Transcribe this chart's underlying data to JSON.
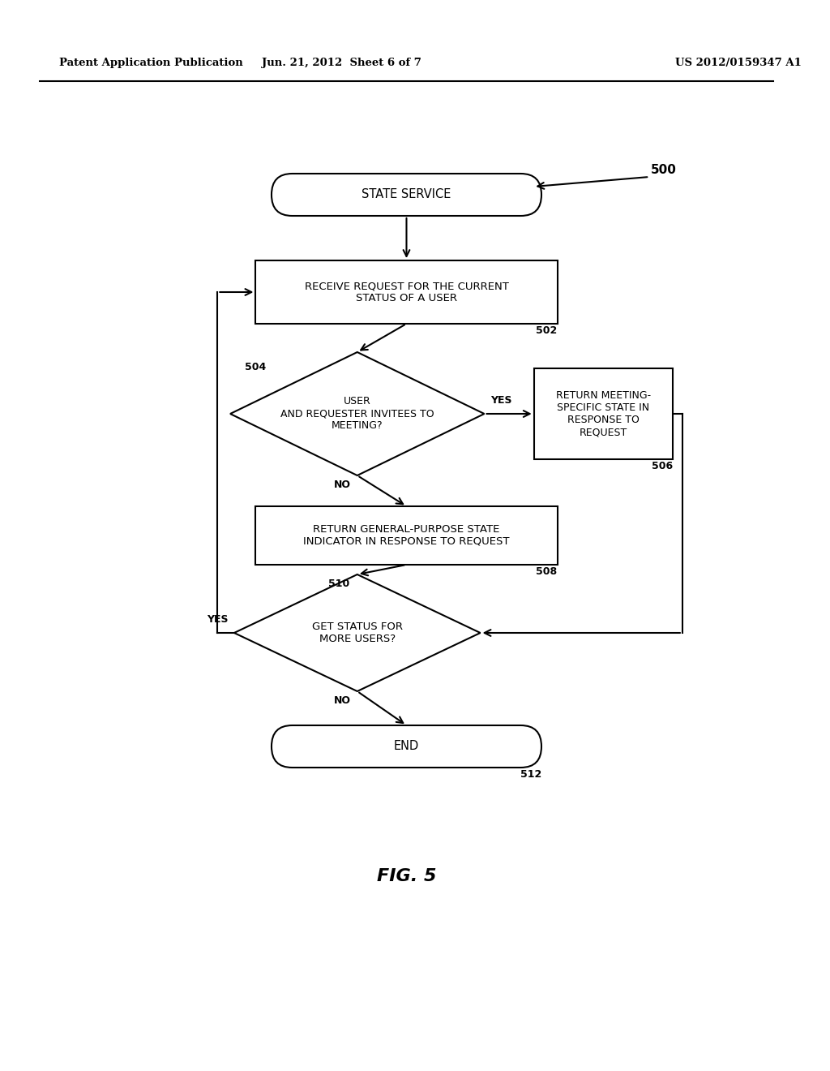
{
  "bg_color": "#ffffff",
  "header_left": "Patent Application Publication",
  "header_mid": "Jun. 21, 2012  Sheet 6 of 7",
  "header_right": "US 2012/0159347 A1",
  "fig_label": "FIG. 5",
  "start_label": "STATE SERVICE",
  "b502_label": "RECEIVE REQUEST FOR THE CURRENT\nSTATUS OF A USER",
  "b502_ref": "502",
  "d504_label": "USER\nAND REQUESTER INVITEES TO\nMEETING?",
  "d504_ref": "504",
  "b506_label": "RETURN MEETING-\nSPECIFIC STATE IN\nRESPONSE TO\nREQUEST",
  "b506_ref": "506",
  "b508_label": "RETURN GENERAL-PURPOSE STATE\nINDICATOR IN RESPONSE TO REQUEST",
  "b508_ref": "508",
  "d510_label": "GET STATUS FOR\nMORE USERS?",
  "d510_ref": "510",
  "end_label": "END",
  "end_ref": "512",
  "ref500": "500",
  "yes_label": "YES",
  "no_label": "NO",
  "lw": 1.5
}
